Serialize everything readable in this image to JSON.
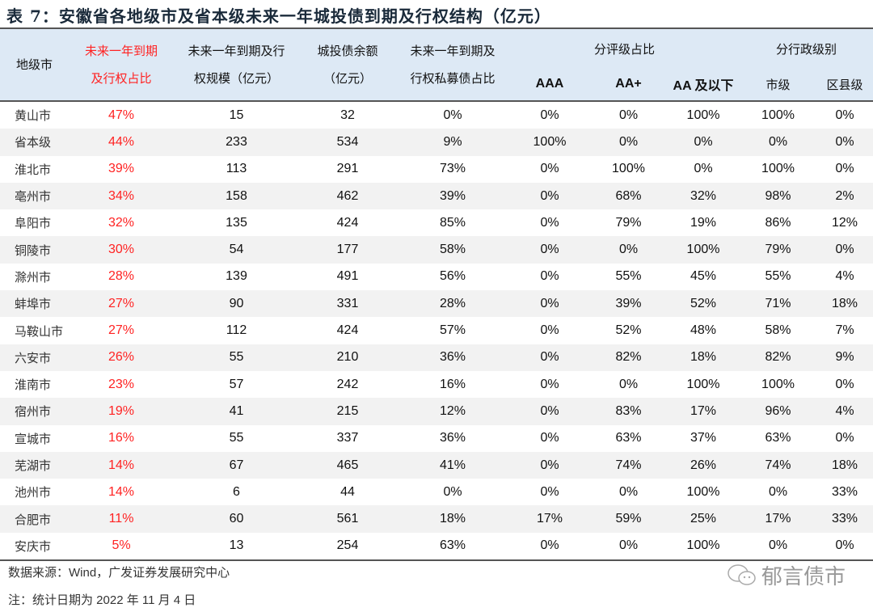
{
  "title": "表 7：安徽省各地级市及省本级未来一年城投债到期及行权结构（亿元）",
  "headers": {
    "city": "地级市",
    "ratio": [
      "未来一年到期",
      "及行权占比"
    ],
    "scale": [
      "未来一年到期及行",
      "权规模（亿元）"
    ],
    "balance": [
      "城投债余额",
      "（亿元）"
    ],
    "private": [
      "未来一年到期及",
      "行权私募债占比"
    ],
    "rating_group": "分评级占比",
    "ratings": [
      "AAA",
      "AA+",
      "AA 及以下"
    ],
    "admin_group": "分行政级别",
    "admin": [
      "市级",
      "区县级"
    ]
  },
  "rows": [
    [
      "黄山市",
      "47%",
      "15",
      "32",
      "0%",
      "0%",
      "0%",
      "100%",
      "100%",
      "0%"
    ],
    [
      "省本级",
      "44%",
      "233",
      "534",
      "9%",
      "100%",
      "0%",
      "0%",
      "0%",
      "0%"
    ],
    [
      "淮北市",
      "39%",
      "113",
      "291",
      "73%",
      "0%",
      "100%",
      "0%",
      "100%",
      "0%"
    ],
    [
      "亳州市",
      "34%",
      "158",
      "462",
      "39%",
      "0%",
      "68%",
      "32%",
      "98%",
      "2%"
    ],
    [
      "阜阳市",
      "32%",
      "135",
      "424",
      "85%",
      "0%",
      "79%",
      "19%",
      "86%",
      "12%"
    ],
    [
      "铜陵市",
      "30%",
      "54",
      "177",
      "58%",
      "0%",
      "0%",
      "100%",
      "79%",
      "0%"
    ],
    [
      "滁州市",
      "28%",
      "139",
      "491",
      "56%",
      "0%",
      "55%",
      "45%",
      "55%",
      "4%"
    ],
    [
      "蚌埠市",
      "27%",
      "90",
      "331",
      "28%",
      "0%",
      "39%",
      "52%",
      "71%",
      "18%"
    ],
    [
      "马鞍山市",
      "27%",
      "112",
      "424",
      "57%",
      "0%",
      "52%",
      "48%",
      "58%",
      "7%"
    ],
    [
      "六安市",
      "26%",
      "55",
      "210",
      "36%",
      "0%",
      "82%",
      "18%",
      "82%",
      "9%"
    ],
    [
      "淮南市",
      "23%",
      "57",
      "242",
      "16%",
      "0%",
      "0%",
      "100%",
      "100%",
      "0%"
    ],
    [
      "宿州市",
      "19%",
      "41",
      "215",
      "12%",
      "0%",
      "83%",
      "17%",
      "96%",
      "4%"
    ],
    [
      "宣城市",
      "16%",
      "55",
      "337",
      "36%",
      "0%",
      "63%",
      "37%",
      "63%",
      "0%"
    ],
    [
      "芜湖市",
      "14%",
      "67",
      "465",
      "41%",
      "0%",
      "74%",
      "26%",
      "74%",
      "18%"
    ],
    [
      "池州市",
      "14%",
      "6",
      "44",
      "0%",
      "0%",
      "0%",
      "100%",
      "0%",
      "33%"
    ],
    [
      "合肥市",
      "11%",
      "60",
      "561",
      "18%",
      "17%",
      "59%",
      "25%",
      "17%",
      "33%"
    ],
    [
      "安庆市",
      "5%",
      "13",
      "254",
      "63%",
      "0%",
      "0%",
      "100%",
      "0%",
      "0%"
    ]
  ],
  "source": "数据来源：Wind，广发证券发展研究中心",
  "note": "注：统计日期为 2022 年 11 月 4 日",
  "watermark": "郁言债市",
  "colors": {
    "highlight": "#ff2222",
    "header_bg": "#dde9f5",
    "stripe": "#f2f2f2"
  }
}
